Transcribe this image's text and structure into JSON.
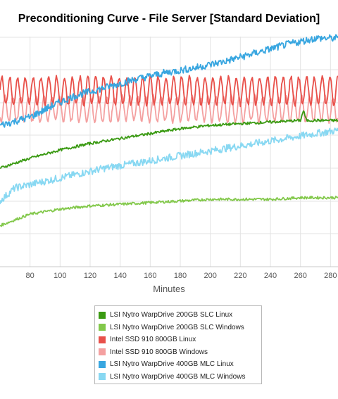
{
  "chart_data": {
    "type": "line",
    "title": "Preconditioning Curve - File Server [Standard Deviation]",
    "xlabel": "Minutes",
    "ylabel": "",
    "x_ticks": [
      80,
      100,
      120,
      140,
      160,
      180,
      200,
      220,
      240,
      260,
      280
    ],
    "xlim": [
      60,
      285
    ],
    "ylim": [
      0,
      7
    ],
    "grid": true,
    "legend_position": "bottom-center",
    "series": [
      {
        "name": "LSI Nytro WarpDrive 200GB SLC Linux",
        "color": "#3a9a12",
        "x": [
          60,
          80,
          100,
          120,
          140,
          160,
          180,
          200,
          220,
          240,
          260,
          262,
          264,
          285
        ],
        "y": [
          3.0,
          3.3,
          3.55,
          3.75,
          3.9,
          4.05,
          4.2,
          4.3,
          4.35,
          4.4,
          4.45,
          4.75,
          4.45,
          4.45
        ]
      },
      {
        "name": "LSI Nytro WarpDrive 200GB SLC Windows",
        "color": "#82c84a",
        "x": [
          60,
          80,
          100,
          120,
          140,
          160,
          180,
          200,
          220,
          240,
          260,
          285
        ],
        "y": [
          1.25,
          1.6,
          1.75,
          1.85,
          1.9,
          1.95,
          2.0,
          2.05,
          2.05,
          2.05,
          2.1,
          2.1
        ]
      },
      {
        "name": "Intel SSD 910 800GB Linux",
        "color": "#e8504a",
        "x": [
          60,
          285
        ],
        "y": [
          5.35,
          5.35
        ]
      },
      {
        "name": "Intel SSD 910 800GB Windows",
        "color": "#f4a0a0",
        "x": [
          60,
          285
        ],
        "y": [
          4.8,
          4.8
        ]
      },
      {
        "name": "LSI Nytro WarpDrive 400GB MLC Linux",
        "color": "#38a6e0",
        "x": [
          60,
          80,
          95,
          110,
          130,
          150,
          170,
          190,
          210,
          230,
          250,
          270,
          285
        ],
        "y": [
          4.3,
          4.55,
          4.9,
          5.2,
          5.45,
          5.7,
          5.9,
          6.05,
          6.25,
          6.5,
          6.75,
          6.95,
          6.95
        ]
      },
      {
        "name": "LSI Nytro WarpDrive 400GB MLC Windows",
        "color": "#88d8f2",
        "x": [
          60,
          70,
          90,
          110,
          130,
          150,
          170,
          190,
          210,
          230,
          250,
          270,
          285
        ],
        "y": [
          2.0,
          2.4,
          2.6,
          2.8,
          3.0,
          3.15,
          3.3,
          3.45,
          3.6,
          3.75,
          3.9,
          4.05,
          4.15
        ]
      }
    ]
  }
}
